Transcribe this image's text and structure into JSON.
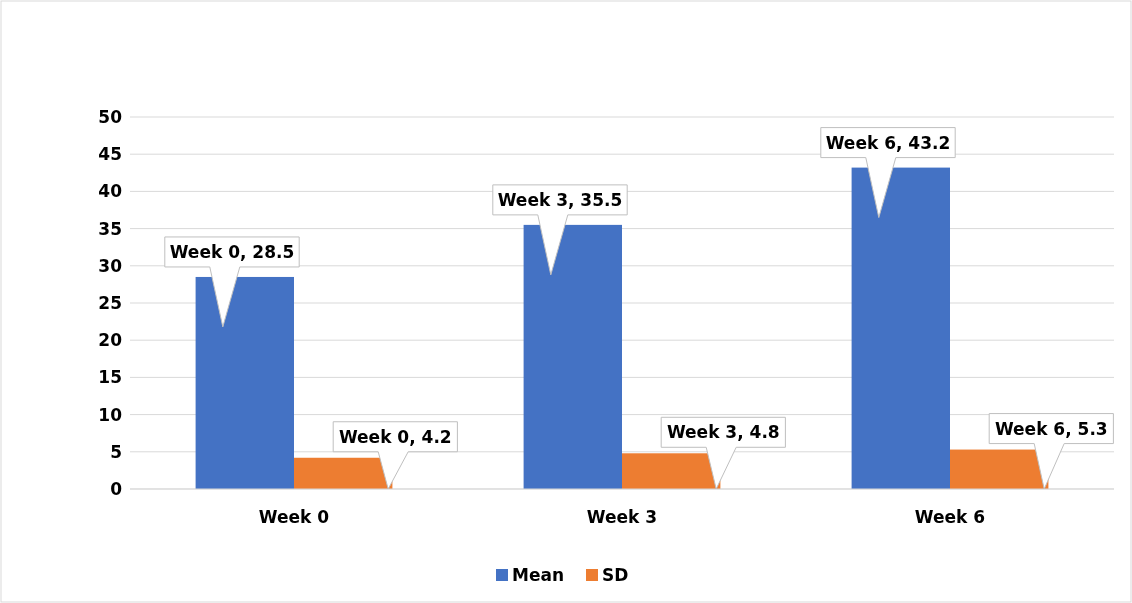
{
  "chart_data": {
    "type": "bar",
    "categories": [
      "Week 0",
      "Week 3",
      "Week 6"
    ],
    "series": [
      {
        "name": "Mean",
        "color": "#4472c4",
        "values": [
          28.5,
          35.5,
          43.2
        ],
        "value_labels": [
          "Week 0, 28.5",
          "Week 3, 35.5",
          "Week 6, 43.2"
        ]
      },
      {
        "name": "SD",
        "color": "#ed7d31",
        "values": [
          4.2,
          4.8,
          5.3
        ],
        "value_labels": [
          "Week 0, 4.2",
          "Week 3, 4.8",
          "Week 6, 5.3"
        ]
      }
    ],
    "ylim": [
      0,
      50
    ],
    "yticks": [
      0,
      5,
      10,
      15,
      20,
      25,
      30,
      35,
      40,
      45,
      50
    ],
    "grid": "y",
    "legend": "bottom"
  }
}
